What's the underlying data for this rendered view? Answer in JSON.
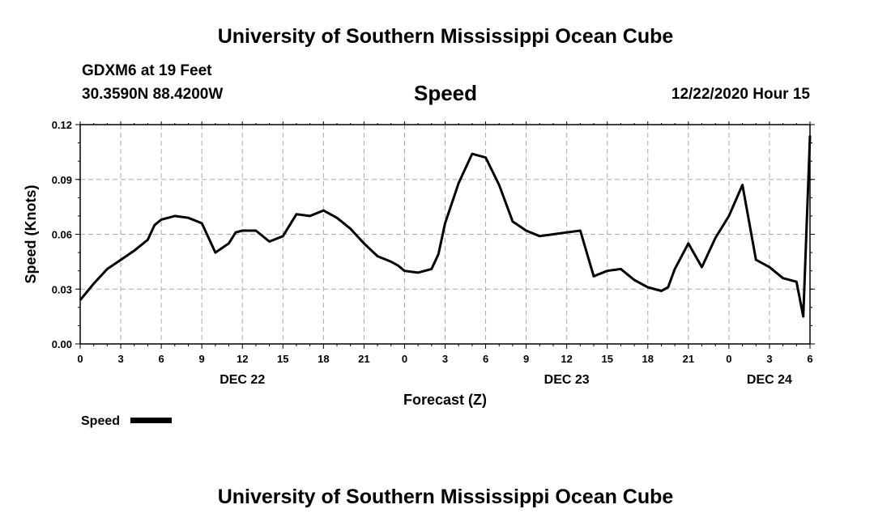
{
  "header": {
    "title": "University of Southern Mississippi Ocean Cube",
    "station": "GDXM6 at 19 Feet",
    "coords": "30.3590N 88.4200W",
    "chart_title": "Speed",
    "datetime": "12/22/2020 Hour 15"
  },
  "footer": {
    "title": "University of Southern Mississippi Ocean Cube"
  },
  "colors": {
    "line": "#000000",
    "grid": "#aaaaaa",
    "frame": "#000000"
  },
  "chart_data": {
    "type": "line",
    "title": "Speed",
    "xlabel": "Forecast (Z)",
    "ylabel": "Speed (Knots)",
    "ylim": [
      0,
      0.12
    ],
    "yticks": [
      0,
      0.03,
      0.06,
      0.09,
      0.12
    ],
    "ytick_labels": [
      "0.00",
      "0.03",
      "0.06",
      "0.09",
      "0.12"
    ],
    "xlim": [
      0,
      54
    ],
    "xticks": [
      0,
      3,
      6,
      9,
      12,
      15,
      18,
      21,
      24,
      27,
      30,
      33,
      36,
      39,
      42,
      45,
      48,
      51,
      54
    ],
    "xtick_labels": [
      "0",
      "3",
      "6",
      "9",
      "12",
      "15",
      "18",
      "21",
      "0",
      "3",
      "6",
      "9",
      "12",
      "15",
      "18",
      "21",
      "0",
      "3",
      "6"
    ],
    "date_labels": [
      {
        "text": "DEC 22",
        "x": 12
      },
      {
        "text": "DEC 23",
        "x": 36
      },
      {
        "text": "DEC 24",
        "x": 51
      }
    ],
    "grid": true,
    "legend": {
      "label": "Speed",
      "position": "bottom-left"
    },
    "series": [
      {
        "name": "Speed",
        "x": [
          0,
          1,
          2,
          3,
          4,
          5,
          5.5,
          6,
          7,
          8,
          9,
          10,
          11,
          11.5,
          12,
          13,
          14,
          15,
          16,
          17,
          18,
          19,
          20,
          21,
          22,
          23,
          23.5,
          24,
          25,
          26,
          26.5,
          27,
          28,
          29,
          30,
          31,
          32,
          33,
          34,
          35,
          36,
          37,
          38,
          39,
          40,
          41,
          42,
          43,
          43.5,
          44,
          45,
          46,
          47,
          48,
          49,
          50,
          51,
          52,
          53,
          53.5,
          54
        ],
        "values": [
          0.024,
          0.033,
          0.041,
          0.046,
          0.051,
          0.057,
          0.065,
          0.068,
          0.07,
          0.069,
          0.066,
          0.05,
          0.055,
          0.061,
          0.062,
          0.062,
          0.056,
          0.059,
          0.071,
          0.07,
          0.073,
          0.069,
          0.063,
          0.055,
          0.048,
          0.045,
          0.043,
          0.04,
          0.039,
          0.041,
          0.049,
          0.066,
          0.088,
          0.104,
          0.102,
          0.087,
          0.067,
          0.062,
          0.059,
          0.06,
          0.061,
          0.062,
          0.037,
          0.04,
          0.041,
          0.035,
          0.031,
          0.029,
          0.031,
          0.041,
          0.055,
          0.042,
          0.058,
          0.07,
          0.087,
          0.046,
          0.042,
          0.036,
          0.034,
          0.015,
          0.114
        ]
      }
    ]
  }
}
